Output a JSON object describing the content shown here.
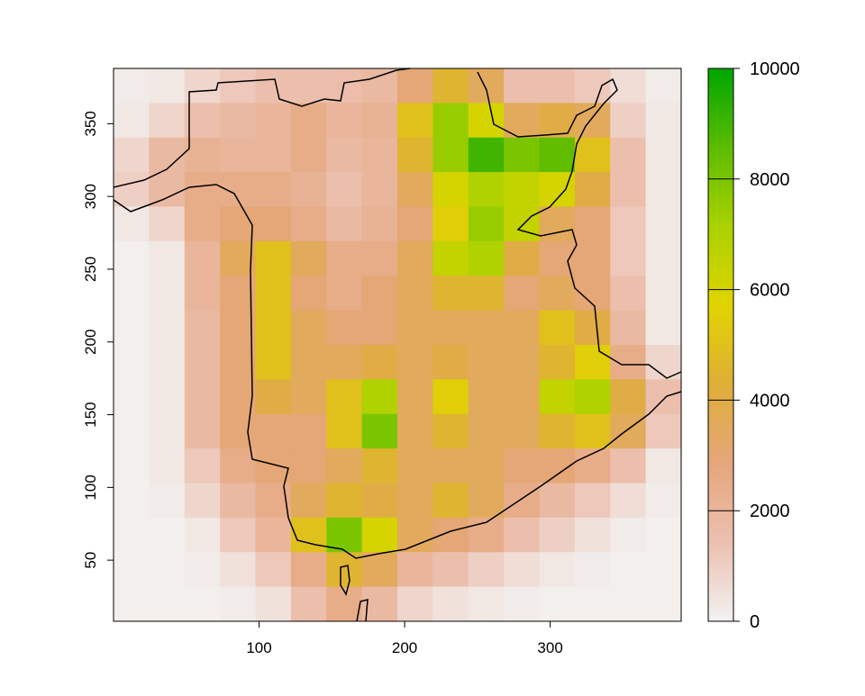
{
  "chart_data": {
    "type": "heatmap",
    "xlim": [
      0,
      390
    ],
    "ylim": [
      8,
      388
    ],
    "xticks": [
      100,
      200,
      300
    ],
    "yticks": [
      50,
      100,
      150,
      200,
      250,
      300,
      350
    ],
    "z": [
      [
        200,
        300,
        800,
        1200,
        1500,
        1500,
        1600,
        1800,
        3000,
        4500,
        3500,
        1500,
        1500,
        1200,
        600,
        200
      ],
      [
        300,
        800,
        1500,
        1800,
        2000,
        2500,
        2000,
        2200,
        5000,
        7500,
        6000,
        3500,
        4000,
        3500,
        1000,
        300
      ],
      [
        800,
        1800,
        2200,
        2000,
        2000,
        2500,
        1800,
        2000,
        4500,
        7500,
        9000,
        8000,
        8500,
        5000,
        1500,
        300
      ],
      [
        1000,
        1800,
        2500,
        2500,
        2500,
        2200,
        1500,
        2000,
        3500,
        6000,
        7000,
        6500,
        6000,
        4000,
        1500,
        300
      ],
      [
        300,
        800,
        2500,
        3000,
        3000,
        2500,
        1800,
        2200,
        3000,
        5500,
        7500,
        6500,
        3500,
        3000,
        1200,
        300
      ],
      [
        100,
        300,
        2000,
        3500,
        5000,
        3500,
        2500,
        2500,
        3500,
        6500,
        7000,
        4000,
        3000,
        3000,
        1200,
        300
      ],
      [
        100,
        300,
        2000,
        3000,
        5000,
        3000,
        2500,
        3000,
        3500,
        4500,
        4500,
        3000,
        3500,
        3000,
        1500,
        300
      ],
      [
        100,
        300,
        1800,
        3000,
        5000,
        3500,
        3000,
        3000,
        3500,
        3500,
        3500,
        3500,
        5000,
        4000,
        1800,
        300
      ],
      [
        100,
        300,
        1800,
        3000,
        5000,
        3500,
        3500,
        4000,
        3500,
        4000,
        3500,
        3500,
        4500,
        5500,
        2500,
        800
      ],
      [
        100,
        300,
        1800,
        3000,
        4000,
        3500,
        5000,
        7000,
        3500,
        5500,
        3500,
        3500,
        6500,
        7000,
        4000,
        1500
      ],
      [
        100,
        300,
        1800,
        3000,
        3000,
        3000,
        5000,
        8000,
        3500,
        4500,
        3500,
        3500,
        4500,
        5000,
        3500,
        1200
      ],
      [
        100,
        300,
        1200,
        2500,
        3000,
        3000,
        3500,
        4500,
        3500,
        3500,
        3500,
        3000,
        3000,
        2500,
        1500,
        300
      ],
      [
        100,
        200,
        800,
        1800,
        2500,
        3500,
        4500,
        4000,
        3500,
        4500,
        3500,
        2500,
        1800,
        1200,
        600,
        200
      ],
      [
        100,
        100,
        300,
        1200,
        2000,
        5000,
        8000,
        6000,
        3500,
        3000,
        2500,
        1500,
        1000,
        500,
        200,
        100
      ],
      [
        100,
        100,
        200,
        500,
        1200,
        2500,
        4500,
        3500,
        2000,
        1500,
        1000,
        600,
        300,
        200,
        100,
        100
      ],
      [
        100,
        100,
        100,
        200,
        500,
        1500,
        2500,
        1800,
        800,
        500,
        300,
        200,
        100,
        100,
        100,
        100
      ]
    ],
    "zlim": [
      0,
      10000
    ],
    "zticks": [
      0,
      2000,
      4000,
      6000,
      8000,
      10000
    ],
    "colors": [
      "#f2f2f2",
      "#ecc0b0",
      "#e5a67c",
      "#dfae38",
      "#e0d400",
      "#aad200",
      "#5cbc00",
      "#00a600"
    ]
  }
}
